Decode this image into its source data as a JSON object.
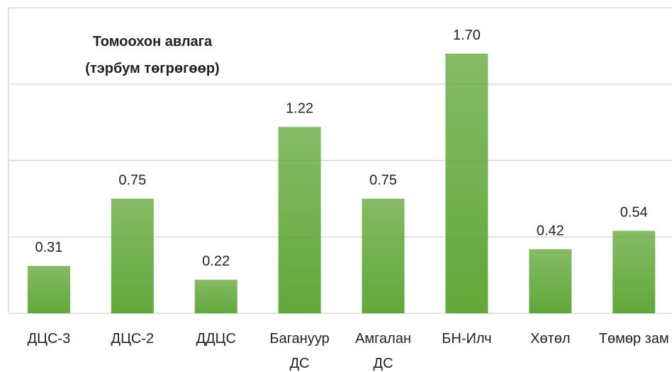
{
  "chart_data": {
    "type": "bar",
    "title": "Томоохон авлага (тэрбум төгрөгөөр)",
    "categories": [
      "ДЦС-3",
      "ДЦС-2",
      "ДДЦС",
      "Багануур ДС",
      "Амгалан ДС",
      "БН-Илч",
      "Хөтөл",
      "Төмөр зам"
    ],
    "values": [
      0.31,
      0.75,
      0.22,
      1.22,
      0.75,
      1.7,
      0.42,
      0.54
    ],
    "value_labels": [
      "0.31",
      "0.75",
      "0.22",
      "1.22",
      "0.75",
      "1.70",
      "0.42",
      "0.54"
    ],
    "color": "#62a83a",
    "ylim": [
      0,
      2
    ],
    "yticks": [
      0,
      0.5,
      1,
      1.5,
      2
    ],
    "grid": true
  }
}
